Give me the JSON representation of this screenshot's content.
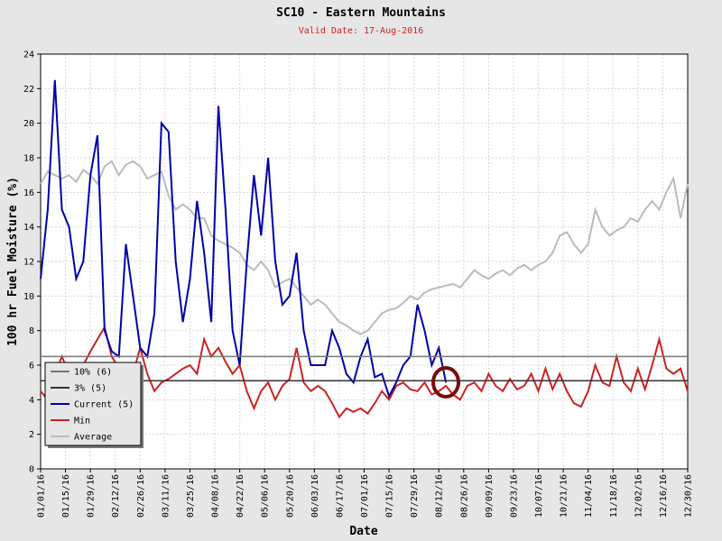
{
  "chart_data": {
    "type": "line",
    "title": "SC10 - Eastern Mountains",
    "subtitle": "Valid Date: 17-Aug-2016",
    "xlabel": "Date",
    "ylabel": "100 hr Fuel Moisture (%)",
    "xlim": [
      "01/01/16",
      "12/30/16"
    ],
    "xticks": [
      "01/01/16",
      "01/15/16",
      "01/29/16",
      "02/12/16",
      "02/26/16",
      "03/11/16",
      "03/25/16",
      "04/08/16",
      "04/22/16",
      "05/06/16",
      "05/20/16",
      "06/03/16",
      "06/17/16",
      "07/01/16",
      "07/15/16",
      "07/29/16",
      "08/12/16",
      "08/26/16",
      "09/09/16",
      "09/23/16",
      "10/07/16",
      "10/21/16",
      "11/04/16",
      "11/18/16",
      "12/02/16",
      "12/16/16",
      "12/30/16"
    ],
    "ylim": [
      0,
      24
    ],
    "yticks": [
      0,
      2,
      4,
      6,
      8,
      10,
      12,
      14,
      16,
      18,
      20,
      22,
      24
    ],
    "grid": true,
    "legend": "lower left",
    "reference_lines": [
      {
        "name": "10% (6)",
        "value": 6.5,
        "color": "#777777"
      },
      {
        "name": "3% (5)",
        "value": 5.1,
        "color": "#333333"
      }
    ],
    "x": [
      "01/01/16",
      "01/05/16",
      "01/09/16",
      "01/13/16",
      "01/17/16",
      "01/21/16",
      "01/25/16",
      "01/29/16",
      "02/02/16",
      "02/06/16",
      "02/10/16",
      "02/14/16",
      "02/18/16",
      "02/22/16",
      "02/26/16",
      "03/01/16",
      "03/05/16",
      "03/09/16",
      "03/13/16",
      "03/17/16",
      "03/21/16",
      "03/25/16",
      "03/29/16",
      "04/02/16",
      "04/06/16",
      "04/10/16",
      "04/14/16",
      "04/18/16",
      "04/22/16",
      "04/26/16",
      "04/30/16",
      "05/04/16",
      "05/08/16",
      "05/12/16",
      "05/16/16",
      "05/20/16",
      "05/24/16",
      "05/28/16",
      "06/01/16",
      "06/05/16",
      "06/09/16",
      "06/13/16",
      "06/17/16",
      "06/21/16",
      "06/25/16",
      "06/29/16",
      "07/03/16",
      "07/07/16",
      "07/11/16",
      "07/15/16",
      "07/19/16",
      "07/23/16",
      "07/27/16",
      "07/31/16",
      "08/04/16",
      "08/08/16",
      "08/12/16",
      "08/16/16",
      "08/20/16",
      "08/24/16",
      "08/28/16",
      "09/01/16",
      "09/05/16",
      "09/09/16",
      "09/13/16",
      "09/17/16",
      "09/21/16",
      "09/25/16",
      "09/29/16",
      "10/03/16",
      "10/07/16",
      "10/11/16",
      "10/15/16",
      "10/19/16",
      "10/23/16",
      "10/27/16",
      "10/31/16",
      "11/04/16",
      "11/08/16",
      "11/12/16",
      "11/16/16",
      "11/20/16",
      "11/24/16",
      "11/28/16",
      "12/02/16",
      "12/06/16",
      "12/10/16",
      "12/14/16",
      "12/18/16",
      "12/22/16",
      "12/26/16",
      "12/30/16"
    ],
    "series": [
      {
        "name": "Current (5)",
        "color": "#0000aa",
        "values": [
          11,
          15,
          22.5,
          15,
          14,
          11,
          12,
          17,
          19.3,
          8,
          6.8,
          6.5,
          13,
          10,
          7,
          6.5,
          9,
          20,
          19.5,
          12,
          8.5,
          11,
          15.5,
          12.5,
          8.5,
          21,
          15,
          8,
          6,
          12,
          17,
          13.5,
          18,
          12,
          9.5,
          10,
          12.5,
          8,
          6,
          6,
          6,
          8,
          7,
          5.5,
          5,
          6.5,
          7.5,
          5.3,
          5.5,
          4.2,
          5,
          6,
          6.5,
          9.5,
          8,
          6,
          7,
          5,
          null,
          null,
          null,
          null,
          null,
          null,
          null,
          null,
          null,
          null,
          null,
          null,
          null,
          null,
          null,
          null,
          null,
          null,
          null,
          null,
          null,
          null,
          null,
          null,
          null,
          null,
          null,
          null,
          null,
          null,
          null,
          null,
          null,
          null
        ]
      },
      {
        "name": "Min",
        "color": "#cc2222",
        "values": [
          4.5,
          4.0,
          5.5,
          6.5,
          5.5,
          5.0,
          6.0,
          6.8,
          7.5,
          8.2,
          6.5,
          5.8,
          6.0,
          5.5,
          7.0,
          5.5,
          4.5,
          5.0,
          5.2,
          5.5,
          5.8,
          6.0,
          5.5,
          7.5,
          6.5,
          7.0,
          6.2,
          5.5,
          6.0,
          4.5,
          3.5,
          4.5,
          5.0,
          4.0,
          4.8,
          5.2,
          7.0,
          5.0,
          4.5,
          4.8,
          4.5,
          3.8,
          3.0,
          3.5,
          3.3,
          3.5,
          3.2,
          3.8,
          4.5,
          4.0,
          4.8,
          5.0,
          4.6,
          4.5,
          5.0,
          4.3,
          4.5,
          4.8,
          4.3,
          4.0,
          4.8,
          5.0,
          4.5,
          5.5,
          4.8,
          4.5,
          5.2,
          4.6,
          4.8,
          5.5,
          4.5,
          5.8,
          4.6,
          5.5,
          4.5,
          3.8,
          3.6,
          4.5,
          6.0,
          5.0,
          4.8,
          6.5,
          5.0,
          4.5,
          5.8,
          4.6,
          6.0,
          7.5,
          5.8,
          5.5,
          5.8,
          4.5
        ]
      },
      {
        "name": "Average",
        "color": "#bbbbbb",
        "values": [
          16.5,
          17.2,
          17.0,
          16.8,
          17.0,
          16.6,
          17.3,
          17.0,
          16.5,
          17.5,
          17.8,
          17.0,
          17.6,
          17.8,
          17.5,
          16.8,
          17.0,
          17.2,
          15.8,
          15.0,
          15.3,
          15.0,
          14.5,
          14.5,
          13.5,
          13.2,
          13.0,
          12.8,
          12.5,
          11.8,
          11.5,
          12.0,
          11.5,
          10.5,
          10.8,
          11.0,
          10.5,
          10.0,
          9.5,
          9.8,
          9.5,
          9.0,
          8.5,
          8.3,
          8.0,
          7.8,
          8.0,
          8.5,
          9.0,
          9.2,
          9.3,
          9.6,
          10.0,
          9.8,
          10.2,
          10.4,
          10.5,
          10.6,
          10.7,
          10.5,
          11.0,
          11.5,
          11.2,
          11.0,
          11.3,
          11.5,
          11.2,
          11.6,
          11.8,
          11.5,
          11.8,
          12.0,
          12.5,
          13.5,
          13.7,
          13.0,
          12.5,
          13.0,
          15.0,
          14.0,
          13.5,
          13.8,
          14.0,
          14.5,
          14.3,
          15.0,
          15.5,
          15.0,
          16.0,
          16.8,
          14.5,
          16.5
        ]
      }
    ]
  }
}
